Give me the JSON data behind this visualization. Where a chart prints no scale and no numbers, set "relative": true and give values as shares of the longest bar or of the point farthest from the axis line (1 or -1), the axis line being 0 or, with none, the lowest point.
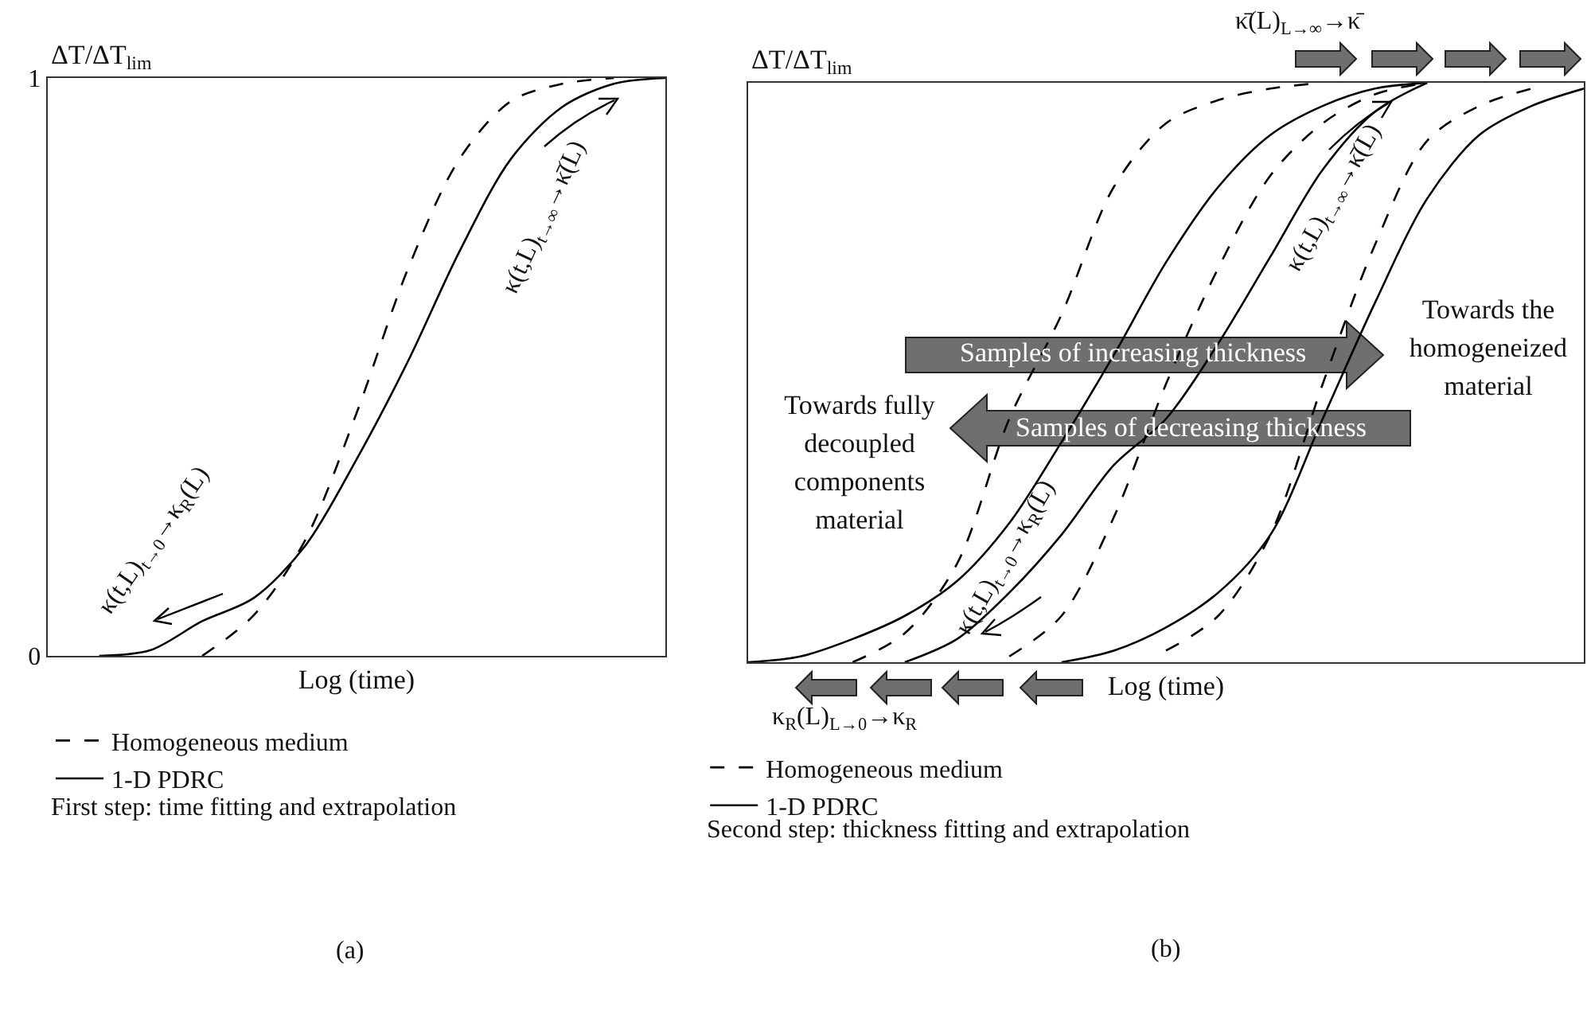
{
  "chart_data": [
    {
      "type": "line",
      "ylabel": "ΔT/ΔT$_{lim}$",
      "xlabel": "Log (time)",
      "categories": [
        null,
        null,
        null,
        null,
        null,
        null,
        null,
        null,
        null,
        null,
        null,
        null,
        null
      ],
      "ylim": [
        0,
        1
      ],
      "yticks": [
        0,
        1
      ],
      "grid": false,
      "legend": "bottom",
      "marker": "none",
      "series": [
        {
          "name": "Homogeneous medium",
          "color": "#000000",
          "line_style": "dashed",
          "values": [
            null,
            null,
            null,
            0,
            0.07,
            0.2,
            0.42,
            0.67,
            0.86,
            0.96,
            0.99,
            1,
            null
          ]
        },
        {
          "name": "1-D PDRC",
          "color": "#000000",
          "line_style": "solid",
          "values": [
            null,
            0,
            0.01,
            0.06,
            0.1,
            0.19,
            0.34,
            0.51,
            0.7,
            0.86,
            0.95,
            0.99,
            1
          ]
        }
      ],
      "annotations": [
        "κ(t,L)$_{t→0}$→κ$_{R}$(L)",
        "κ(t,L)$_{t→∞}$→κ̄(L)",
        "First step: time fitting and extrapolation",
        "(a)"
      ]
    },
    {
      "type": "line",
      "ylabel": "ΔT/ΔT$_{lim}$",
      "xlabel": "Log (time)",
      "categories": [
        null,
        null,
        null,
        null,
        null,
        null,
        null,
        null,
        null,
        null,
        null,
        null,
        null,
        null,
        null,
        null,
        null
      ],
      "relative": true,
      "grid": false,
      "legend": "bottom",
      "marker": "none",
      "series": [
        {
          "name": "Homogeneous medium",
          "color": "#000000",
          "line_style": "dashed",
          "values": [
            null,
            null,
            0,
            0.05,
            0.17,
            0.42,
            0.6,
            0.82,
            0.93,
            0.97,
            0.99,
            1,
            null,
            null,
            null,
            null,
            null
          ]
        },
        {
          "name": "1-D PDRC",
          "color": "#000000",
          "line_style": "solid",
          "values": [
            0,
            0.01,
            0.04,
            0.08,
            0.14,
            0.24,
            0.38,
            0.53,
            0.69,
            0.82,
            0.91,
            0.96,
            0.99,
            1,
            null,
            null,
            null
          ]
        },
        {
          "name": "Homogeneous medium",
          "color": "#000000",
          "line_style": "dashed",
          "values": [
            null,
            null,
            null,
            null,
            null,
            0.01,
            0.08,
            0.25,
            0.48,
            0.68,
            0.84,
            0.93,
            0.98,
            1,
            null,
            null,
            null
          ]
        },
        {
          "name": "1-D PDRC",
          "color": "#000000",
          "line_style": "solid",
          "values": [
            null,
            null,
            null,
            0,
            0.04,
            0.12,
            0.22,
            0.34,
            0.42,
            0.55,
            0.7,
            0.85,
            0.95,
            1,
            null,
            null,
            null
          ]
        },
        {
          "name": "Homogeneous medium",
          "color": "#000000",
          "line_style": "dashed",
          "values": [
            null,
            null,
            null,
            null,
            null,
            null,
            null,
            null,
            0.02,
            0.08,
            0.22,
            0.48,
            0.72,
            0.9,
            0.96,
            0.99,
            null
          ]
        },
        {
          "name": "1-D PDRC",
          "color": "#000000",
          "line_style": "solid",
          "values": [
            null,
            null,
            null,
            null,
            null,
            null,
            0,
            0.02,
            0.06,
            0.12,
            0.22,
            0.42,
            0.62,
            0.8,
            0.91,
            0.96,
            0.99
          ]
        }
      ],
      "annotations": [
        "κ̄(L)$_{L→∞}$→κ̄",
        "κ$_{R}$(L)$_{L→0}$→κ$_{R}$",
        "Samples of increasing thickness",
        "Samples of decreasing thickness",
        "Towards the homogeneized material",
        "Towards fully decoupled components material",
        "κ(t,L)$_{t→∞}$→κ̄(L)",
        "κ(t,L)$_{t→0}$→κ$_{R}$(L)",
        "Second step: thickness fitting and extrapolation",
        "(b)"
      ]
    }
  ]
}
